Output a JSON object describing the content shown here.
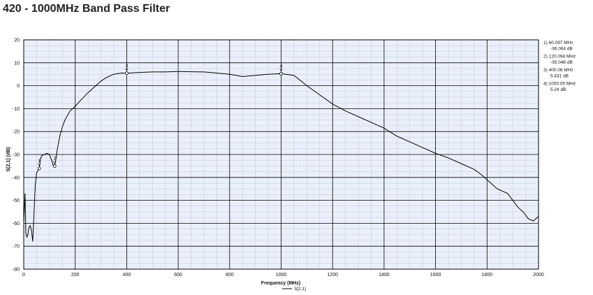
{
  "header": {
    "title": "420 - 1000MHz Band Pass Filter"
  },
  "chart_data": {
    "type": "line",
    "title": "420 - 1000MHz Band Pass Filter",
    "xlabel": "Frequency (MHz)",
    "ylabel": "S[2,1] (dB)",
    "xlim": [
      0,
      2000
    ],
    "ylim": [
      -80,
      20
    ],
    "xticks": [
      0,
      200,
      400,
      600,
      800,
      1000,
      1200,
      1400,
      1600,
      1800,
      2000
    ],
    "yticks": [
      20,
      10,
      0,
      -10,
      -20,
      -30,
      -40,
      -50,
      -60,
      -70,
      -80
    ],
    "grid": true,
    "legend": "bottom-center",
    "series": [
      {
        "name": "S[2,1]",
        "color": "#000000",
        "x": [
          0,
          5,
          8,
          12,
          16,
          20,
          25,
          30,
          35,
          40,
          45,
          50,
          55,
          58,
          60.097,
          65,
          70,
          80,
          90,
          100,
          110,
          115,
          120.094,
          125,
          130,
          140,
          150,
          160,
          180,
          200,
          220,
          250,
          280,
          300,
          320,
          350,
          380,
          400.08,
          450,
          500,
          550,
          600,
          650,
          700,
          750,
          800,
          850,
          900,
          950,
          1000.05,
          1050,
          1100,
          1150,
          1200,
          1250,
          1300,
          1350,
          1400,
          1450,
          1500,
          1550,
          1600,
          1650,
          1700,
          1750,
          1780,
          1800,
          1820,
          1840,
          1860,
          1880,
          1900,
          1920,
          1940,
          1960,
          1980,
          2000
        ],
        "y": [
          -60,
          -47,
          -64,
          -66,
          -65,
          -62,
          -61,
          -63,
          -68,
          -55,
          -43,
          -38,
          -37,
          -36.5,
          -36.064,
          -32,
          -30.5,
          -30,
          -29.5,
          -30,
          -33,
          -35,
          -35.048,
          -32,
          -28,
          -22,
          -18,
          -15,
          -11,
          -9,
          -6.5,
          -3,
          0,
          2,
          3.5,
          5,
          5.5,
          5.431,
          5.8,
          6,
          6,
          6.2,
          6.1,
          6,
          5.5,
          5,
          4,
          4.5,
          5,
          5.24,
          4.5,
          0,
          -4,
          -8,
          -11,
          -13.5,
          -16,
          -18.5,
          -22,
          -24.5,
          -27,
          -29.5,
          -31.5,
          -34,
          -36.5,
          -39,
          -41,
          -43,
          -45,
          -46,
          -47,
          -50,
          -53,
          -55,
          -58,
          -59,
          -57
        ]
      }
    ],
    "markers": [
      {
        "id": "1",
        "x": 60.097,
        "y": -36.064,
        "freq_label": "1)  60.097 MHz",
        "val_label": "-36.064 dB"
      },
      {
        "id": "2",
        "x": 120.094,
        "y": -35.048,
        "freq_label": "2)  120.094 MHz",
        "val_label": "-35.048 dB"
      },
      {
        "id": "3",
        "x": 400.08,
        "y": 5.431,
        "freq_label": "3)  400.08 MHz",
        "val_label": "5.431 dB"
      },
      {
        "id": "4",
        "x": 1000.05,
        "y": 5.24,
        "freq_label": "4)  1000.05 MHz",
        "val_label": "5.24 dB"
      }
    ]
  }
}
